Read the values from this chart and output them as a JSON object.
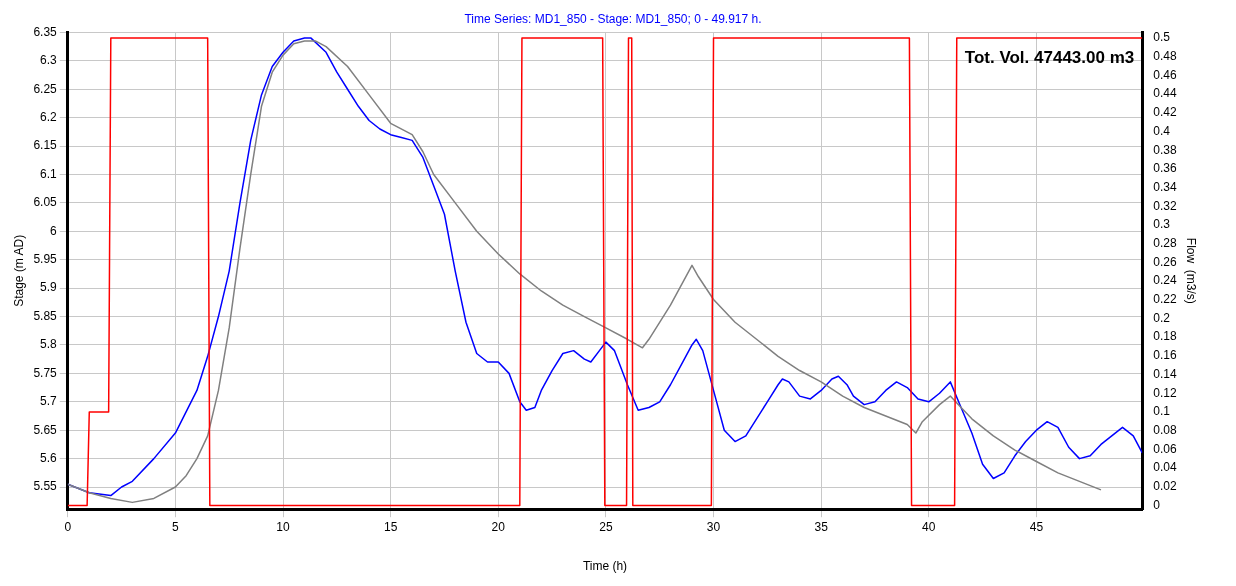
{
  "chart_data": {
    "type": "line",
    "title": "Time Series: MD1_850 - Stage: MD1_850; 0 - 49.917 h.",
    "xlabel": "Time (h)",
    "ylabel": "Stage (m AD)",
    "y2label": "Flow  (m3/s)",
    "annotations": [
      "Tot. Vol. 47443.00 m3"
    ],
    "xlim": [
      0,
      49.917
    ],
    "xticks": [
      0,
      5,
      10,
      15,
      20,
      25,
      30,
      35,
      40,
      45
    ],
    "ylim": [
      5.511,
      6.35
    ],
    "yticks": [
      5.55,
      5.6,
      5.65,
      5.7,
      5.75,
      5.8,
      5.85,
      5.9,
      5.95,
      6,
      6.05,
      6.1,
      6.15,
      6.2,
      6.25,
      6.3,
      6.35
    ],
    "y2lim": [
      -0.004,
      0.506
    ],
    "y2ticks": [
      0,
      0.02,
      0.04,
      0.06,
      0.08,
      0.1,
      0.12,
      0.14,
      0.16,
      0.18,
      0.2,
      0.22,
      0.24,
      0.26,
      0.28,
      0.3,
      0.32,
      0.34,
      0.36,
      0.38,
      0.4,
      0.42,
      0.44,
      0.46,
      0.48,
      0.5
    ],
    "grid": true,
    "legend": false,
    "marker": "none",
    "line_style": "solid",
    "series": [
      {
        "color": "#ff0000",
        "axis": "y2",
        "x": [
          0,
          0.9,
          1.0,
          1.9,
          2.0,
          6.5,
          6.6,
          21.0,
          21.1,
          24.85,
          24.95,
          25.96,
          26.05,
          26.2,
          26.25,
          29.9,
          30.0,
          39.1,
          39.2,
          41.2,
          41.3,
          49.917
        ],
        "values": [
          0,
          0,
          0.1,
          0.1,
          0.5,
          0.5,
          0,
          0,
          0.5,
          0.5,
          0,
          0,
          0.5,
          0.5,
          0,
          0,
          0.5,
          0.5,
          0,
          0,
          0.5,
          0.5
        ]
      },
      {
        "color": "#808080",
        "x": [
          0,
          1,
          2,
          3,
          4,
          5,
          5.5,
          6,
          6.5,
          7,
          7.5,
          8,
          8.5,
          9,
          9.5,
          10,
          10.5,
          11,
          11.5,
          12,
          13,
          14,
          15,
          16,
          16.5,
          17,
          18,
          19,
          20,
          21,
          22,
          23,
          24,
          25,
          26,
          26.7,
          27,
          28,
          29,
          29.3,
          30,
          31,
          32,
          33,
          34,
          35,
          36,
          37,
          38,
          39,
          39.4,
          39.7,
          40.5,
          41,
          41.5,
          42,
          43,
          44,
          45,
          46,
          47,
          48
        ],
        "values": [
          5.555,
          5.54,
          5.53,
          5.523,
          5.53,
          5.55,
          5.57,
          5.6,
          5.64,
          5.72,
          5.83,
          5.97,
          6.1,
          6.22,
          6.28,
          6.31,
          6.33,
          6.335,
          6.335,
          6.325,
          6.29,
          6.24,
          6.19,
          6.17,
          6.14,
          6.1,
          6.05,
          6.0,
          5.96,
          5.925,
          5.895,
          5.87,
          5.85,
          5.83,
          5.81,
          5.795,
          5.81,
          5.87,
          5.94,
          5.92,
          5.88,
          5.84,
          5.81,
          5.78,
          5.755,
          5.735,
          5.71,
          5.69,
          5.675,
          5.66,
          5.645,
          5.665,
          5.695,
          5.71,
          5.69,
          5.67,
          5.64,
          5.615,
          5.595,
          5.575,
          5.56,
          5.545
        ]
      },
      {
        "color": "#0000ff",
        "x": [
          0,
          1,
          2,
          2.5,
          3,
          4,
          5,
          6,
          6.5,
          7,
          7.5,
          8,
          8.5,
          9,
          9.5,
          10,
          10.5,
          11,
          11.3,
          12,
          12.5,
          13,
          13.5,
          14,
          14.5,
          15,
          15.5,
          16,
          16.5,
          17,
          17.5,
          18,
          18.5,
          19,
          19.5,
          20,
          20.5,
          21,
          21.3,
          21.7,
          22,
          22.5,
          23,
          23.5,
          24,
          24.3,
          24.7,
          25,
          25.4,
          26,
          26.5,
          27,
          27.5,
          28,
          28.5,
          29,
          29.2,
          29.5,
          30,
          30.5,
          31,
          31.5,
          32,
          32.5,
          33,
          33.2,
          33.5,
          34,
          34.5,
          35,
          35.5,
          35.8,
          36.2,
          36.5,
          37,
          37.5,
          38,
          38.5,
          39,
          39.5,
          40,
          40.5,
          41,
          41.5,
          42,
          42.5,
          43,
          43.5,
          44,
          44.5,
          45,
          45.5,
          46,
          46.5,
          47,
          47.5,
          48,
          48.5,
          49,
          49.5,
          49.917
        ],
        "values": [
          5.555,
          5.54,
          5.535,
          5.55,
          5.56,
          5.6,
          5.645,
          5.72,
          5.78,
          5.85,
          5.93,
          6.05,
          6.16,
          6.24,
          6.29,
          6.315,
          6.335,
          6.34,
          6.34,
          6.315,
          6.28,
          6.25,
          6.22,
          6.195,
          6.18,
          6.17,
          6.165,
          6.16,
          6.13,
          6.08,
          6.03,
          5.93,
          5.84,
          5.785,
          5.77,
          5.77,
          5.75,
          5.7,
          5.685,
          5.69,
          5.72,
          5.755,
          5.785,
          5.79,
          5.775,
          5.77,
          5.79,
          5.805,
          5.79,
          5.73,
          5.685,
          5.69,
          5.7,
          5.73,
          5.765,
          5.8,
          5.81,
          5.79,
          5.72,
          5.65,
          5.63,
          5.64,
          5.67,
          5.7,
          5.73,
          5.74,
          5.735,
          5.71,
          5.705,
          5.72,
          5.74,
          5.745,
          5.73,
          5.71,
          5.695,
          5.7,
          5.72,
          5.735,
          5.725,
          5.705,
          5.7,
          5.715,
          5.735,
          5.69,
          5.645,
          5.59,
          5.565,
          5.575,
          5.605,
          5.63,
          5.65,
          5.665,
          5.655,
          5.62,
          5.6,
          5.605,
          5.625,
          5.64,
          5.655,
          5.64,
          5.61
        ]
      }
    ]
  }
}
